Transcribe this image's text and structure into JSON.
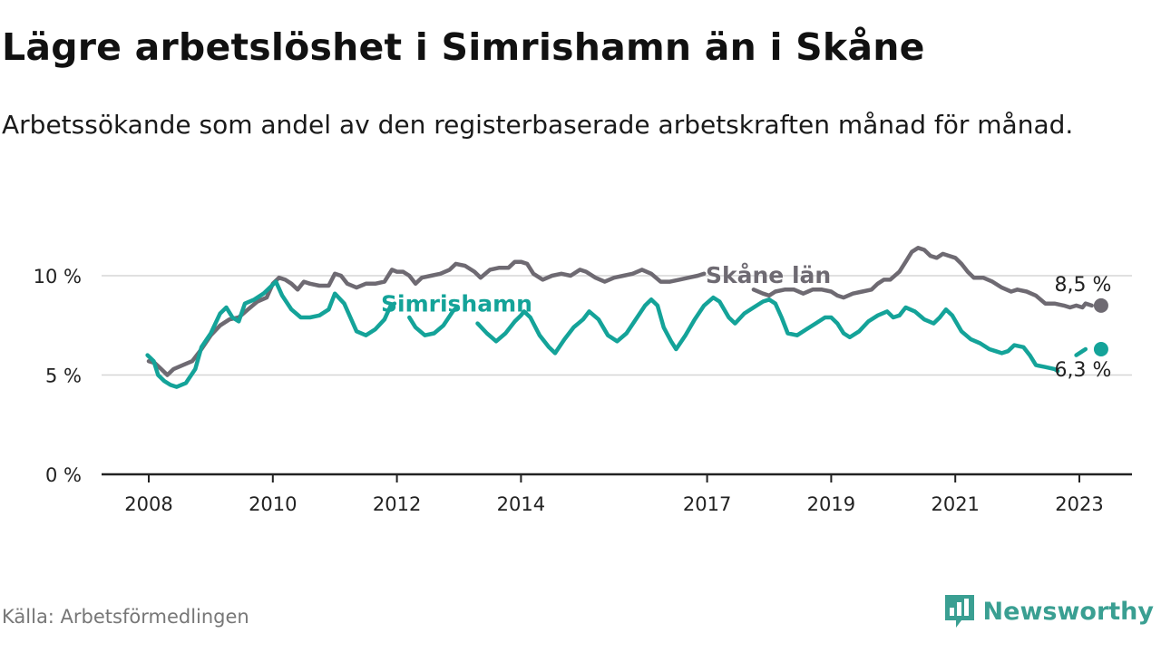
{
  "header": {
    "title": "Lägre arbetslöshet i Simrishamn än i Skåne",
    "subtitle": "Arbetssökande som andel av den registerbaserade arbetskraften månad för månad."
  },
  "footer": {
    "source": "Källa: Arbetsförmedlingen",
    "brand": "Newsworthy",
    "brand_icon": "newsworthy-logo-icon"
  },
  "colors": {
    "skane": "#6e6a72",
    "simrishamn": "#14a399",
    "grid": "#d6d6d6",
    "axis": "#222222",
    "brand": "#3a9f92"
  },
  "chart_data": {
    "type": "line",
    "title": "Lägre arbetslöshet i Simrishamn än i Skåne",
    "xlabel": "",
    "ylabel": "",
    "xlim": [
      2007.9,
      2023.9
    ],
    "ylim": [
      0,
      11.5
    ],
    "y_ticks": [
      {
        "value": 0,
        "label": "0 %"
      },
      {
        "value": 5,
        "label": "5 %"
      },
      {
        "value": 10,
        "label": "10 %"
      }
    ],
    "x_ticks": [
      {
        "value": 2008,
        "label": "2008"
      },
      {
        "value": 2010,
        "label": "2010"
      },
      {
        "value": 2012,
        "label": "2012"
      },
      {
        "value": 2014,
        "label": "2014"
      },
      {
        "value": 2017,
        "label": "2017"
      },
      {
        "value": 2019,
        "label": "2019"
      },
      {
        "value": 2021,
        "label": "2021"
      },
      {
        "value": 2023,
        "label": "2023"
      }
    ],
    "series": [
      {
        "name": "Skåne län",
        "label": "Skåne län",
        "end_label": "8,5 %",
        "last_value": 8.5,
        "points": [
          [
            2008.0,
            5.7
          ],
          [
            2008.1,
            5.6
          ],
          [
            2008.2,
            5.3
          ],
          [
            2008.3,
            5.0
          ],
          [
            2008.4,
            5.3
          ],
          [
            2008.55,
            5.5
          ],
          [
            2008.7,
            5.7
          ],
          [
            2008.85,
            6.3
          ],
          [
            2009.0,
            7.0
          ],
          [
            2009.15,
            7.5
          ],
          [
            2009.3,
            7.8
          ],
          [
            2009.45,
            7.9
          ],
          [
            2009.6,
            8.3
          ],
          [
            2009.75,
            8.7
          ],
          [
            2009.9,
            8.9
          ],
          [
            2010.0,
            9.6
          ],
          [
            2010.1,
            9.9
          ],
          [
            2010.2,
            9.8
          ],
          [
            2010.3,
            9.6
          ],
          [
            2010.4,
            9.3
          ],
          [
            2010.5,
            9.7
          ],
          [
            2010.6,
            9.6
          ],
          [
            2010.75,
            9.5
          ],
          [
            2010.9,
            9.5
          ],
          [
            2011.0,
            10.1
          ],
          [
            2011.1,
            10.0
          ],
          [
            2011.2,
            9.6
          ],
          [
            2011.35,
            9.4
          ],
          [
            2011.5,
            9.6
          ],
          [
            2011.65,
            9.6
          ],
          [
            2011.8,
            9.7
          ],
          [
            2011.92,
            10.3
          ],
          [
            2012.0,
            10.2
          ],
          [
            2012.1,
            10.2
          ],
          [
            2012.2,
            10.0
          ],
          [
            2012.3,
            9.6
          ],
          [
            2012.4,
            9.9
          ],
          [
            2012.55,
            10.0
          ],
          [
            2012.7,
            10.1
          ],
          [
            2012.85,
            10.3
          ],
          [
            2012.95,
            10.6
          ],
          [
            2013.1,
            10.5
          ],
          [
            2013.25,
            10.2
          ],
          [
            2013.35,
            9.9
          ],
          [
            2013.5,
            10.3
          ],
          [
            2013.65,
            10.4
          ],
          [
            2013.8,
            10.4
          ],
          [
            2013.9,
            10.7
          ],
          [
            2014.0,
            10.7
          ],
          [
            2014.1,
            10.6
          ],
          [
            2014.2,
            10.1
          ],
          [
            2014.35,
            9.8
          ],
          [
            2014.5,
            10.0
          ],
          [
            2014.65,
            10.1
          ],
          [
            2014.8,
            10.0
          ],
          [
            2014.95,
            10.3
          ],
          [
            2015.05,
            10.2
          ],
          [
            2015.2,
            9.9
          ],
          [
            2015.35,
            9.7
          ],
          [
            2015.5,
            9.9
          ],
          [
            2015.65,
            10.0
          ],
          [
            2015.8,
            10.1
          ],
          [
            2015.95,
            10.3
          ],
          [
            2016.1,
            10.1
          ],
          [
            2016.25,
            9.7
          ],
          [
            2016.4,
            9.7
          ],
          [
            2016.55,
            9.8
          ],
          [
            2016.7,
            9.9
          ],
          [
            2016.85,
            10.0
          ],
          [
            2016.95,
            10.1
          ]
        ]
      },
      {
        "name": "Skåne län (2018–)",
        "label": "",
        "points": [
          [
            2017.75,
            9.3
          ],
          [
            2017.9,
            9.1
          ],
          [
            2018.0,
            9.0
          ],
          [
            2018.1,
            9.2
          ],
          [
            2018.25,
            9.3
          ],
          [
            2018.4,
            9.3
          ],
          [
            2018.55,
            9.1
          ],
          [
            2018.7,
            9.3
          ],
          [
            2018.85,
            9.3
          ],
          [
            2019.0,
            9.2
          ],
          [
            2019.1,
            9.0
          ],
          [
            2019.2,
            8.9
          ],
          [
            2019.35,
            9.1
          ],
          [
            2019.5,
            9.2
          ],
          [
            2019.65,
            9.3
          ],
          [
            2019.75,
            9.6
          ],
          [
            2019.85,
            9.8
          ],
          [
            2019.95,
            9.8
          ],
          [
            2020.1,
            10.2
          ],
          [
            2020.2,
            10.7
          ],
          [
            2020.3,
            11.2
          ],
          [
            2020.4,
            11.4
          ],
          [
            2020.5,
            11.3
          ],
          [
            2020.6,
            11.0
          ],
          [
            2020.7,
            10.9
          ],
          [
            2020.8,
            11.1
          ],
          [
            2020.9,
            11.0
          ],
          [
            2021.0,
            10.9
          ],
          [
            2021.1,
            10.6
          ],
          [
            2021.2,
            10.2
          ],
          [
            2021.3,
            9.9
          ],
          [
            2021.45,
            9.9
          ],
          [
            2021.6,
            9.7
          ],
          [
            2021.75,
            9.4
          ],
          [
            2021.9,
            9.2
          ],
          [
            2022.0,
            9.3
          ],
          [
            2022.15,
            9.2
          ],
          [
            2022.3,
            9.0
          ],
          [
            2022.45,
            8.6
          ],
          [
            2022.6,
            8.6
          ],
          [
            2022.75,
            8.5
          ],
          [
            2022.85,
            8.4
          ],
          [
            2022.95,
            8.5
          ],
          [
            2023.05,
            8.4
          ],
          [
            2023.1,
            8.6
          ],
          [
            2023.2,
            8.5
          ]
        ]
      },
      {
        "name": "Simrishamn",
        "label": "Simrishamn",
        "end_label": "6,3 %",
        "last_value": 6.3,
        "points": [
          [
            2007.98,
            6.0
          ],
          [
            2008.08,
            5.7
          ],
          [
            2008.15,
            5.0
          ],
          [
            2008.25,
            4.7
          ],
          [
            2008.35,
            4.5
          ],
          [
            2008.45,
            4.4
          ],
          [
            2008.6,
            4.6
          ],
          [
            2008.75,
            5.3
          ],
          [
            2008.85,
            6.4
          ],
          [
            2009.0,
            7.1
          ],
          [
            2009.15,
            8.1
          ],
          [
            2009.25,
            8.4
          ],
          [
            2009.35,
            7.9
          ],
          [
            2009.45,
            7.7
          ],
          [
            2009.55,
            8.6
          ],
          [
            2009.7,
            8.8
          ],
          [
            2009.85,
            9.1
          ],
          [
            2009.95,
            9.4
          ],
          [
            2010.05,
            9.7
          ],
          [
            2010.15,
            9.0
          ],
          [
            2010.3,
            8.3
          ],
          [
            2010.45,
            7.9
          ],
          [
            2010.6,
            7.9
          ],
          [
            2010.75,
            8.0
          ],
          [
            2010.9,
            8.3
          ],
          [
            2011.0,
            9.1
          ],
          [
            2011.15,
            8.6
          ],
          [
            2011.25,
            7.9
          ],
          [
            2011.35,
            7.2
          ],
          [
            2011.5,
            7.0
          ],
          [
            2011.65,
            7.3
          ],
          [
            2011.8,
            7.8
          ],
          [
            2011.9,
            8.5
          ],
          [
            2011.96,
            8.6
          ]
        ]
      },
      {
        "name": "Simrishamn (2012–)",
        "label": "",
        "points": [
          [
            2012.2,
            7.9
          ],
          [
            2012.3,
            7.4
          ],
          [
            2012.45,
            7.0
          ],
          [
            2012.6,
            7.1
          ],
          [
            2012.75,
            7.5
          ],
          [
            2012.9,
            8.2
          ],
          [
            2012.96,
            8.4
          ]
        ]
      },
      {
        "name": "Simrishamn (2013–)",
        "label": "",
        "points": [
          [
            2013.3,
            7.6
          ],
          [
            2013.45,
            7.1
          ],
          [
            2013.6,
            6.7
          ],
          [
            2013.75,
            7.1
          ],
          [
            2013.9,
            7.7
          ],
          [
            2014.0,
            8.0
          ],
          [
            2014.05,
            8.2
          ],
          [
            2014.15,
            7.9
          ],
          [
            2014.3,
            7.0
          ],
          [
            2014.45,
            6.4
          ],
          [
            2014.55,
            6.1
          ],
          [
            2014.7,
            6.8
          ],
          [
            2014.85,
            7.4
          ],
          [
            2015.0,
            7.8
          ],
          [
            2015.1,
            8.2
          ],
          [
            2015.25,
            7.8
          ],
          [
            2015.4,
            7.0
          ],
          [
            2015.55,
            6.7
          ],
          [
            2015.7,
            7.1
          ],
          [
            2015.85,
            7.8
          ],
          [
            2016.0,
            8.5
          ],
          [
            2016.1,
            8.8
          ],
          [
            2016.2,
            8.5
          ],
          [
            2016.3,
            7.4
          ],
          [
            2016.42,
            6.7
          ],
          [
            2016.5,
            6.3
          ],
          [
            2016.65,
            7.0
          ],
          [
            2016.8,
            7.8
          ],
          [
            2016.95,
            8.5
          ],
          [
            2017.1,
            8.9
          ],
          [
            2017.2,
            8.7
          ],
          [
            2017.35,
            7.9
          ],
          [
            2017.45,
            7.6
          ],
          [
            2017.6,
            8.1
          ],
          [
            2017.75,
            8.4
          ],
          [
            2017.9,
            8.7
          ],
          [
            2018.0,
            8.8
          ],
          [
            2018.1,
            8.6
          ],
          [
            2018.2,
            7.9
          ],
          [
            2018.3,
            7.1
          ],
          [
            2018.45,
            7.0
          ],
          [
            2018.6,
            7.3
          ],
          [
            2018.75,
            7.6
          ],
          [
            2018.9,
            7.9
          ],
          [
            2019.0,
            7.9
          ],
          [
            2019.1,
            7.6
          ],
          [
            2019.2,
            7.1
          ],
          [
            2019.3,
            6.9
          ],
          [
            2019.45,
            7.2
          ],
          [
            2019.6,
            7.7
          ],
          [
            2019.75,
            8.0
          ],
          [
            2019.9,
            8.2
          ],
          [
            2020.0,
            7.9
          ],
          [
            2020.1,
            8.0
          ],
          [
            2020.2,
            8.4
          ],
          [
            2020.35,
            8.2
          ],
          [
            2020.5,
            7.8
          ],
          [
            2020.65,
            7.6
          ],
          [
            2020.75,
            7.9
          ],
          [
            2020.85,
            8.3
          ],
          [
            2020.95,
            8.0
          ],
          [
            2021.1,
            7.2
          ],
          [
            2021.25,
            6.8
          ],
          [
            2021.4,
            6.6
          ],
          [
            2021.55,
            6.3
          ],
          [
            2021.65,
            6.2
          ],
          [
            2021.75,
            6.1
          ],
          [
            2021.85,
            6.2
          ],
          [
            2021.95,
            6.5
          ],
          [
            2022.1,
            6.4
          ],
          [
            2022.2,
            6.0
          ],
          [
            2022.3,
            5.5
          ],
          [
            2022.45,
            5.4
          ],
          [
            2022.6,
            5.3
          ],
          [
            2022.65,
            5.2
          ]
        ]
      },
      {
        "name": "Simrishamn (2023)",
        "label": "",
        "points": [
          [
            2022.95,
            6.0
          ],
          [
            2023.05,
            6.2
          ],
          [
            2023.1,
            6.3
          ]
        ]
      }
    ]
  }
}
